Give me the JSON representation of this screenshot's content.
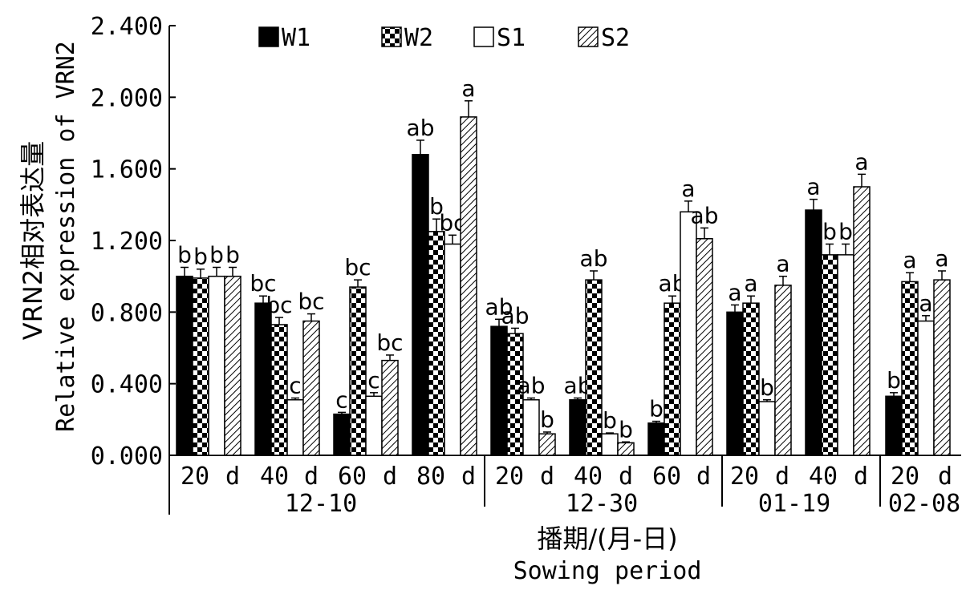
{
  "chart_data": {
    "type": "bar",
    "title": "",
    "ylabel_cn": "VRN2相对表达量",
    "ylabel_en": "Relative expression of VRN2",
    "xlabel_cn": "播期/(月-日)",
    "xlabel_en": "Sowing period",
    "ylim": [
      0,
      2.4
    ],
    "yticks": [
      "0.000",
      "0.400",
      "0.800",
      "1.200",
      "1.600",
      "2.000",
      "2.400"
    ],
    "legend_position": "top",
    "series_names": [
      "W1",
      "W2",
      "S1",
      "S2"
    ],
    "groups": [
      {
        "date": "12-10",
        "days": [
          "20 d",
          "40 d",
          "60 d",
          "80 d"
        ]
      },
      {
        "date": "12-30",
        "days": [
          "20 d",
          "40 d",
          "60 d"
        ]
      },
      {
        "date": "01-19",
        "days": [
          "20 d",
          "40 d"
        ]
      },
      {
        "date": "02-08",
        "days": [
          "20 d"
        ]
      }
    ],
    "categories": [
      "12-10 20 d",
      "12-10 40 d",
      "12-10 60 d",
      "12-10 80 d",
      "12-30 20 d",
      "12-30 40 d",
      "12-30 60 d",
      "01-19 20 d",
      "01-19 40 d",
      "02-08 20 d"
    ],
    "series": [
      {
        "name": "W1",
        "values": [
          1.0,
          0.85,
          0.23,
          1.68,
          0.72,
          0.31,
          0.18,
          0.8,
          1.37,
          0.33
        ],
        "errors": [
          0.05,
          0.04,
          0.01,
          0.08,
          0.04,
          0.01,
          0.01,
          0.04,
          0.06,
          0.02
        ],
        "letters": [
          "b",
          "bc",
          "c",
          "ab",
          "ab",
          "ab",
          "b",
          "a",
          "a",
          "b"
        ]
      },
      {
        "name": "W2",
        "values": [
          0.99,
          0.73,
          0.94,
          1.25,
          0.68,
          0.98,
          0.85,
          0.85,
          1.12,
          0.97
        ],
        "errors": [
          0.05,
          0.04,
          0.04,
          0.07,
          0.03,
          0.05,
          0.04,
          0.04,
          0.06,
          0.05
        ],
        "letters": [
          "b",
          "bc",
          "bc",
          "b",
          "ab",
          "ab",
          "ab",
          "a",
          "b",
          "a"
        ]
      },
      {
        "name": "S1",
        "values": [
          1.0,
          0.31,
          0.33,
          1.18,
          0.31,
          0.12,
          1.36,
          0.3,
          1.12,
          0.75
        ],
        "errors": [
          0.05,
          0.01,
          0.02,
          0.05,
          0.01,
          0.005,
          0.06,
          0.01,
          0.06,
          0.03
        ],
        "letters": [
          "b",
          "c",
          "c",
          "bc",
          "ab",
          "b",
          "a",
          "b",
          "b",
          "a"
        ]
      },
      {
        "name": "S2",
        "values": [
          1.0,
          0.75,
          0.53,
          1.89,
          0.12,
          0.07,
          1.21,
          0.95,
          1.5,
          0.98
        ],
        "errors": [
          0.05,
          0.04,
          0.03,
          0.09,
          0.01,
          0.005,
          0.06,
          0.05,
          0.07,
          0.05
        ],
        "letters": [
          "b",
          "bc",
          "bc",
          "a",
          "b",
          "b",
          "ab",
          "a",
          "a",
          "a"
        ]
      }
    ]
  }
}
